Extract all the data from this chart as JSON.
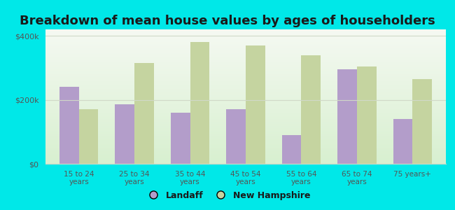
{
  "title": "Breakdown of mean house values by ages of householders",
  "categories": [
    "15 to 24\nyears",
    "25 to 34\nyears",
    "35 to 44\nyears",
    "45 to 54\nyears",
    "55 to 64\nyears",
    "65 to 74\nyears",
    "75 years+"
  ],
  "landaff": [
    240000,
    185000,
    160000,
    170000,
    90000,
    295000,
    140000
  ],
  "new_hampshire": [
    170000,
    315000,
    380000,
    370000,
    340000,
    305000,
    265000
  ],
  "landaff_color": "#b39dca",
  "nh_color": "#c5d4a0",
  "bg_color_topleft": "#f0f8ee",
  "bg_color_topright": "#f8f8f8",
  "bg_color_bottomleft": "#d8f0d0",
  "bg_color_bottomright": "#e8f4e0",
  "outer_background": "#00e8e8",
  "ylim": [
    0,
    420000
  ],
  "yticks": [
    0,
    200000,
    400000
  ],
  "ytick_labels": [
    "$0",
    "$200k",
    "$400k"
  ],
  "legend_labels": [
    "Landaff",
    "New Hampshire"
  ],
  "title_fontsize": 13,
  "bar_width": 0.35,
  "grid_color": "#d0d8c8",
  "tick_color": "#555555",
  "title_color": "#1a1a1a"
}
